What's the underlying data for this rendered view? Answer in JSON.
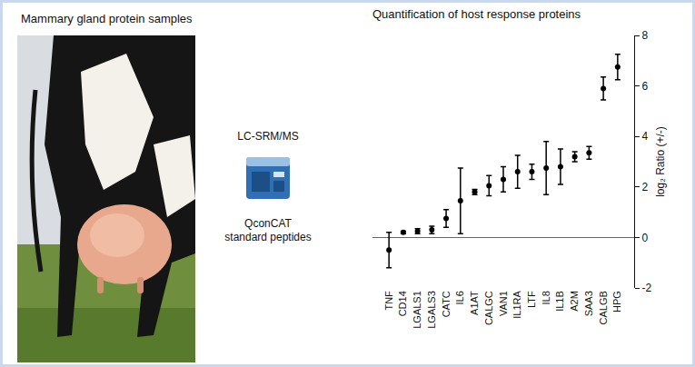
{
  "figure": {
    "left_title": "Mammary gland protein samples",
    "method": "LC-SRM/MS",
    "standard_lines": [
      "QconCAT",
      "standard peptides"
    ]
  },
  "chart_data": {
    "type": "scatter",
    "title": "Quantification of host response proteins",
    "y_label": "log₂ Ratio (+/-)",
    "categories": [
      "TNF",
      "CD14",
      "LGALS1",
      "LGALS3",
      "CATC",
      "IL6",
      "A1AT",
      "CALGC",
      "VAN1",
      "IL1RA",
      "LTF",
      "IL8",
      "IL1B",
      "A2M",
      "SAA3",
      "CALGB",
      "HPG"
    ],
    "values": [
      -0.5,
      0.2,
      0.25,
      0.3,
      0.75,
      1.45,
      1.8,
      2.05,
      2.3,
      2.6,
      2.6,
      2.75,
      2.8,
      3.2,
      3.35,
      5.9,
      6.75
    ],
    "errors": [
      0.7,
      0.05,
      0.1,
      0.15,
      0.35,
      1.3,
      0.1,
      0.4,
      0.5,
      0.65,
      0.3,
      1.05,
      0.7,
      0.2,
      0.25,
      0.45,
      0.5
    ],
    "color": "#000000",
    "marker": "circle",
    "ylim": [
      -2,
      8
    ],
    "yticks": [
      -2,
      0,
      2,
      4,
      6,
      8
    ],
    "grid": false
  }
}
